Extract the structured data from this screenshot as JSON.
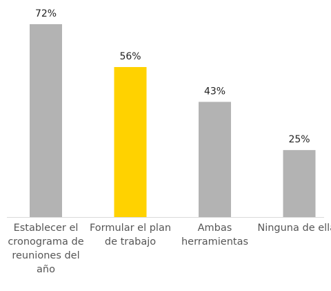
{
  "chart_data": {
    "type": "bar",
    "categories": [
      "Establecer el cronograma de reuniones del año",
      "Formular el plan de trabajo",
      "Ambas herramientas",
      "Ninguna de ellas"
    ],
    "values": [
      72,
      56,
      43,
      25
    ],
    "value_labels": [
      "72%",
      "56%",
      "43%",
      "25%"
    ],
    "colors": [
      "#b3b3b3",
      "#ffd200",
      "#b3b3b3",
      "#b3b3b3"
    ],
    "ylim": [
      0,
      80
    ]
  }
}
